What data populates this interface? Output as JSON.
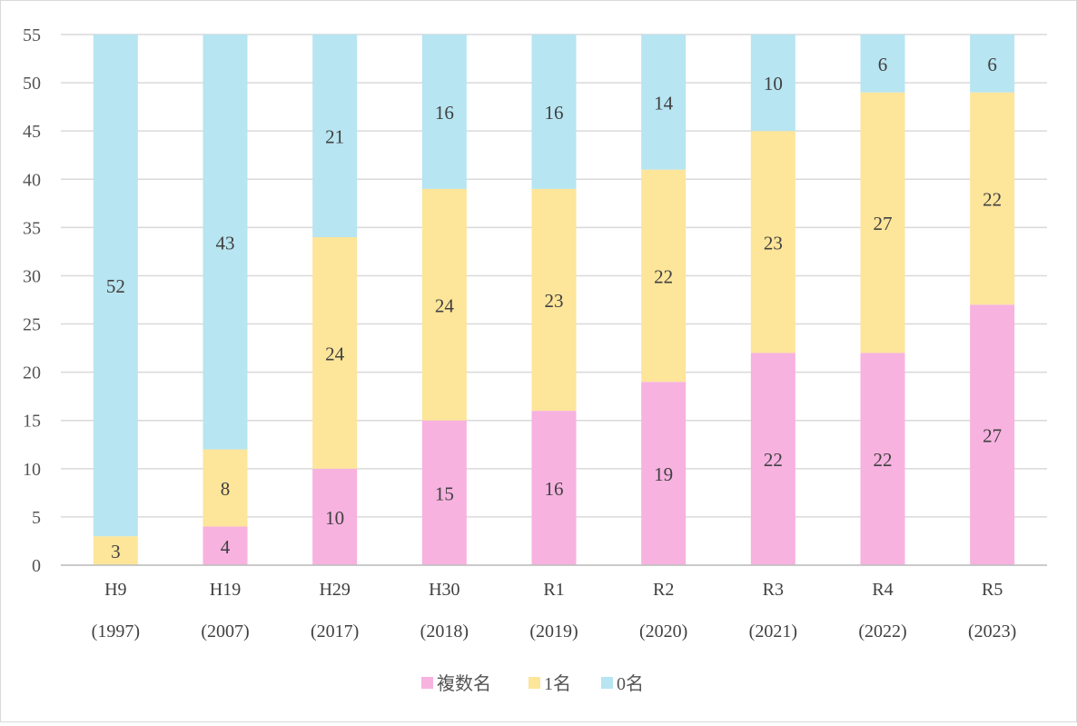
{
  "chart_data": {
    "type": "bar",
    "stacked": true,
    "categories": [
      "H9",
      "H19",
      "H29",
      "H30",
      "R1",
      "R2",
      "R3",
      "R4",
      "R5"
    ],
    "category_years": [
      "(1997)",
      "(2007)",
      "(2017)",
      "(2018)",
      "(2019)",
      "(2020)",
      "(2021)",
      "(2022)",
      "(2023)"
    ],
    "series": [
      {
        "name": "複数名",
        "color": "#f7b2e0",
        "values": [
          0,
          4,
          10,
          15,
          16,
          19,
          22,
          22,
          27
        ]
      },
      {
        "name": "1名",
        "color": "#fde59a",
        "values": [
          3,
          8,
          24,
          24,
          23,
          22,
          23,
          27,
          22
        ]
      },
      {
        "name": "0名",
        "color": "#b7e5f1",
        "values": [
          52,
          43,
          21,
          16,
          16,
          14,
          10,
          6,
          6
        ]
      }
    ],
    "ylim": [
      0,
      55
    ],
    "yticks": [
      0,
      5,
      10,
      15,
      20,
      25,
      30,
      35,
      40,
      45,
      50,
      55
    ],
    "grid": true,
    "legend_position": "bottom",
    "title": "",
    "xlabel": "",
    "ylabel": ""
  }
}
